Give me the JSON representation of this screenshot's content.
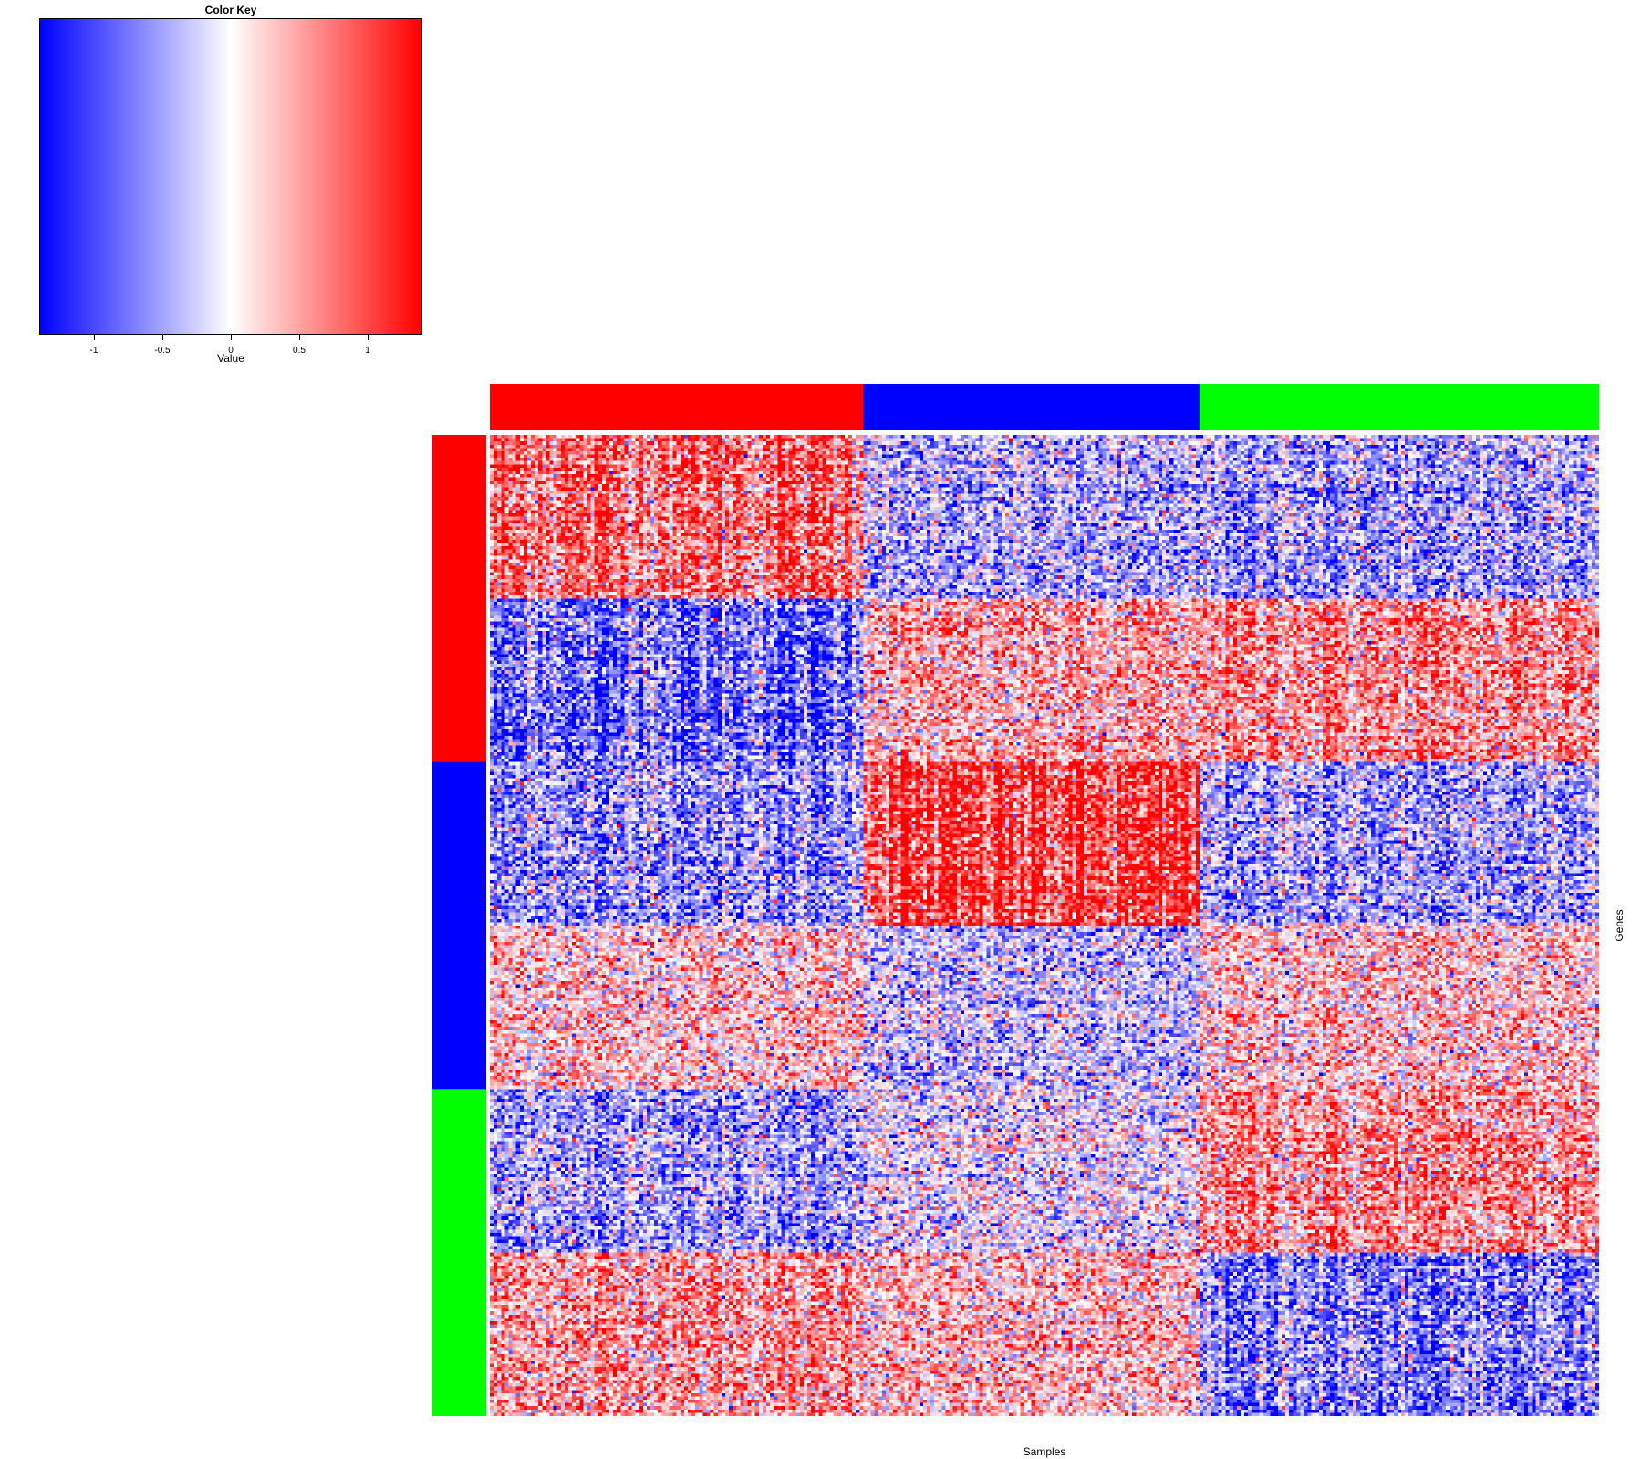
{
  "chart_data": {
    "type": "heatmap",
    "title": "",
    "xlabel": "Samples",
    "ylabel": "Genes",
    "color_key": {
      "title": "Color Key",
      "xlabel": "Value",
      "range": [
        -1.4,
        1.4
      ],
      "colors": [
        "#0000ff",
        "#ffffff",
        "#ff0000"
      ],
      "ticks": [
        -1,
        -0.5,
        0,
        0.5,
        1
      ],
      "tick_labels": [
        "-1",
        "-0.5",
        "0",
        "0.5",
        "1"
      ]
    },
    "column_groups": [
      {
        "color": "#ff0000",
        "count": 100
      },
      {
        "color": "#0000ff",
        "count": 90
      },
      {
        "color": "#00ff00",
        "count": 107
      }
    ],
    "row_groups": [
      {
        "color": "#ff0000",
        "count": 100
      },
      {
        "color": "#0000ff",
        "count": 100
      },
      {
        "color": "#00ff00",
        "count": 100
      }
    ],
    "row_blocks": [
      {
        "group": 0,
        "rows": 50,
        "mean_by_column_group": [
          0.8,
          -0.4,
          -0.5
        ]
      },
      {
        "group": 0,
        "rows": 50,
        "mean_by_column_group": [
          -0.8,
          0.4,
          0.6
        ]
      },
      {
        "group": 1,
        "rows": 50,
        "mean_by_column_group": [
          -0.6,
          1.0,
          -0.5
        ]
      },
      {
        "group": 1,
        "rows": 50,
        "mean_by_column_group": [
          0.3,
          -0.3,
          0.3
        ]
      },
      {
        "group": 2,
        "rows": 50,
        "mean_by_column_group": [
          -0.5,
          -0.1,
          0.6
        ]
      },
      {
        "group": 2,
        "rows": 50,
        "mean_by_column_group": [
          0.5,
          0.3,
          -0.7
        ]
      }
    ]
  }
}
